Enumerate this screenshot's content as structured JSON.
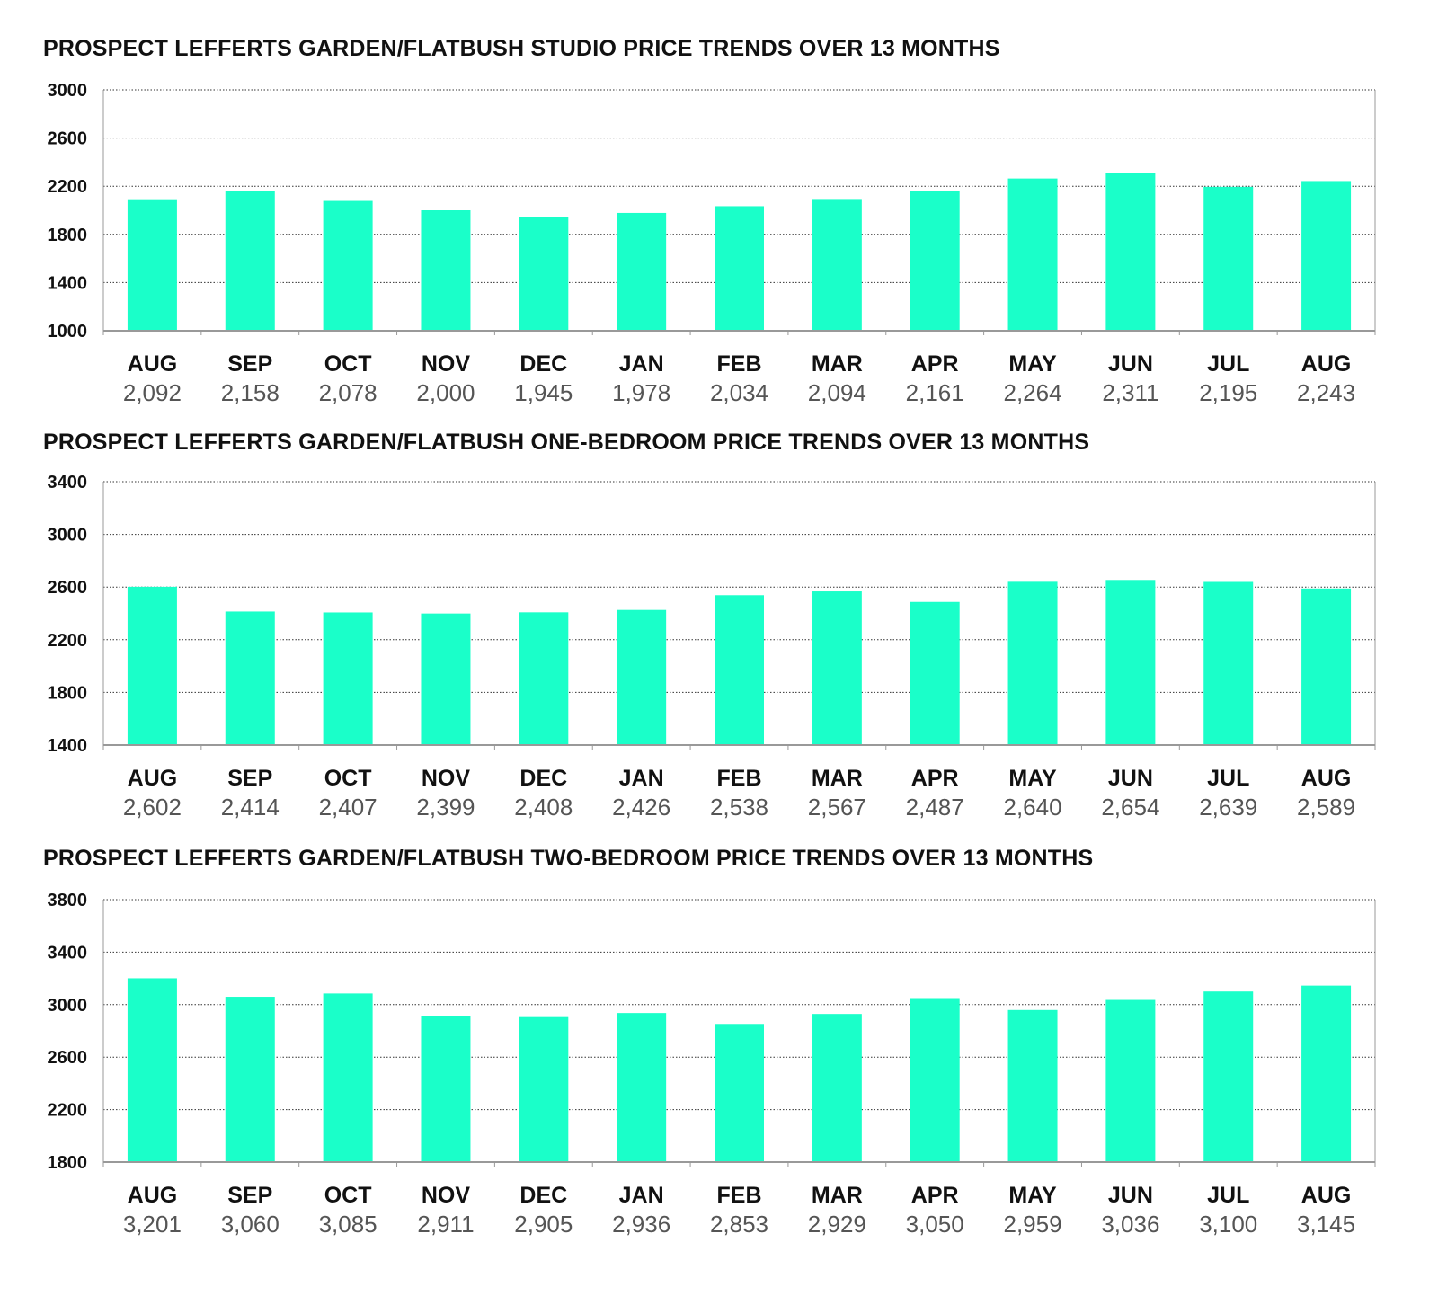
{
  "colors": {
    "bar": "#1affc9",
    "grid": "#333333",
    "axis": "#999999",
    "value_text": "#555555",
    "label_text": "#111111"
  },
  "chart_data": [
    {
      "type": "bar",
      "title": "PROSPECT LEFFERTS GARDEN/FLATBUSH STUDIO PRICE TRENDS OVER 13 MONTHS",
      "categories": [
        "AUG",
        "SEP",
        "OCT",
        "NOV",
        "DEC",
        "JAN",
        "FEB",
        "MAR",
        "APR",
        "MAY",
        "JUN",
        "JUL",
        "AUG"
      ],
      "values": [
        2092,
        2158,
        2078,
        2000,
        1945,
        1978,
        2034,
        2094,
        2161,
        2264,
        2311,
        2195,
        2243
      ],
      "value_labels": [
        "2,092",
        "2,158",
        "2,078",
        "2,000",
        "1,945",
        "1,978",
        "2,034",
        "2,094",
        "2,161",
        "2,264",
        "2,311",
        "2,195",
        "2,243"
      ],
      "ylim": [
        1000,
        3000
      ],
      "yticks": [
        1000,
        1400,
        1800,
        2200,
        2600,
        3000
      ],
      "grid": true,
      "legend": "none"
    },
    {
      "type": "bar",
      "title": "PROSPECT LEFFERTS GARDEN/FLATBUSH ONE-BEDROOM PRICE TRENDS OVER 13 MONTHS",
      "categories": [
        "AUG",
        "SEP",
        "OCT",
        "NOV",
        "DEC",
        "JAN",
        "FEB",
        "MAR",
        "APR",
        "MAY",
        "JUN",
        "JUL",
        "AUG"
      ],
      "values": [
        2602,
        2414,
        2407,
        2399,
        2408,
        2426,
        2538,
        2567,
        2487,
        2640,
        2654,
        2639,
        2589
      ],
      "value_labels": [
        "2,602",
        "2,414",
        "2,407",
        "2,399",
        "2,408",
        "2,426",
        "2,538",
        "2,567",
        "2,487",
        "2,640",
        "2,654",
        "2,639",
        "2,589"
      ],
      "ylim": [
        1400,
        3400
      ],
      "yticks": [
        1400,
        1800,
        2200,
        2600,
        3000,
        3400
      ],
      "grid": true,
      "legend": "none"
    },
    {
      "type": "bar",
      "title": "PROSPECT LEFFERTS GARDEN/FLATBUSH TWO-BEDROOM PRICE TRENDS OVER 13 MONTHS",
      "categories": [
        "AUG",
        "SEP",
        "OCT",
        "NOV",
        "DEC",
        "JAN",
        "FEB",
        "MAR",
        "APR",
        "MAY",
        "JUN",
        "JUL",
        "AUG"
      ],
      "values": [
        3201,
        3060,
        3085,
        2911,
        2905,
        2936,
        2853,
        2929,
        3050,
        2959,
        3036,
        3100,
        3145
      ],
      "value_labels": [
        "3,201",
        "3,060",
        "3,085",
        "2,911",
        "2,905",
        "2,936",
        "2,853",
        "2,929",
        "3,050",
        "2,959",
        "3,036",
        "3,100",
        "3,145"
      ],
      "ylim": [
        1800,
        3800
      ],
      "yticks": [
        1800,
        2200,
        2600,
        3000,
        3400,
        3800
      ],
      "grid": true,
      "legend": "none"
    }
  ]
}
